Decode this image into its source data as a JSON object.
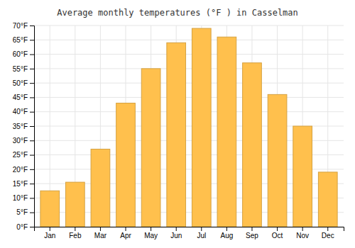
{
  "chart_data": {
    "type": "bar",
    "title": "Average monthly temperatures (°F ) in Casselman",
    "categories": [
      "Jan",
      "Feb",
      "Mar",
      "Apr",
      "May",
      "Jun",
      "Jul",
      "Aug",
      "Sep",
      "Oct",
      "Nov",
      "Dec"
    ],
    "values": [
      12.5,
      15.5,
      27.0,
      43.0,
      55.0,
      64.0,
      69.0,
      66.0,
      57.0,
      46.0,
      35.0,
      19.0
    ],
    "color": "#FFC04D",
    "ylim": [
      0,
      70
    ],
    "yticks": [
      {
        "value": 0,
        "label": "0°F"
      },
      {
        "value": 5,
        "label": "5°F"
      },
      {
        "value": 10,
        "label": "10°F"
      },
      {
        "value": 15,
        "label": "15°F"
      },
      {
        "value": 20,
        "label": "20°F"
      },
      {
        "value": 25,
        "label": "25°F"
      },
      {
        "value": 30,
        "label": "30°F"
      },
      {
        "value": 35,
        "label": "35°F"
      },
      {
        "value": 40,
        "label": "40°F"
      },
      {
        "value": 45,
        "label": "45°F"
      },
      {
        "value": 50,
        "label": "50°F"
      },
      {
        "value": 55,
        "label": "55°F"
      },
      {
        "value": 60,
        "label": "60°F"
      },
      {
        "value": 65,
        "label": "65°F"
      },
      {
        "value": 70,
        "label": "70°F"
      }
    ],
    "grid": true
  }
}
